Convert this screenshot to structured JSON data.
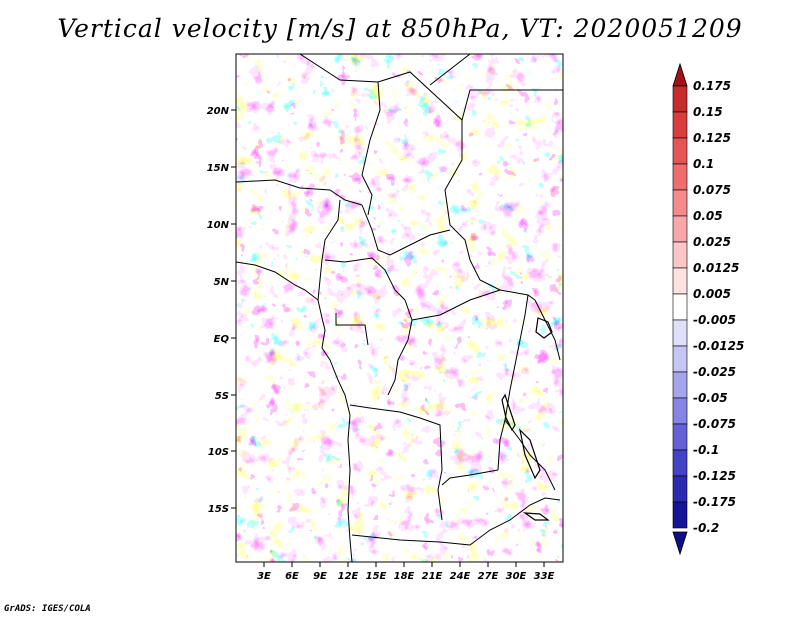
{
  "title": "Vertical velocity [m/s] at 850hPa, VT: 2020051209",
  "credit": "GrADS: IGES/COLA",
  "map": {
    "region": "Central Africa",
    "lat_range": [
      -19.5,
      25
    ],
    "lon_range": [
      0,
      35
    ],
    "lat_labels": [
      "20N",
      "15N",
      "10N",
      "5N",
      "EQ",
      "5S",
      "10S",
      "15S"
    ],
    "lat_values": [
      20,
      15,
      10,
      5,
      0,
      -5,
      -10,
      -15
    ],
    "lon_labels": [
      "3E",
      "6E",
      "9E",
      "12E",
      "15E",
      "18E",
      "21E",
      "24E",
      "27E",
      "30E",
      "33E"
    ],
    "lon_values": [
      3,
      6,
      9,
      12,
      15,
      18,
      21,
      24,
      27,
      30,
      33
    ]
  },
  "colorbar": {
    "labels": [
      "0.175",
      "0.15",
      "0.125",
      "0.1",
      "0.075",
      "0.05",
      "0.025",
      "0.0125",
      "0.005",
      "-0.005",
      "-0.0125",
      "-0.025",
      "-0.05",
      "-0.075",
      "-0.1",
      "-0.125",
      "-0.175",
      "-0.2"
    ],
    "colors": [
      "#a50f15",
      "#c62a2a",
      "#d93d3d",
      "#e65555",
      "#ee6e6e",
      "#f48a8a",
      "#f8a8a8",
      "#fbc6c6",
      "#fde2e2",
      "#ffffff",
      "#e0e0fb",
      "#c5c5f5",
      "#a5a5ee",
      "#8585e4",
      "#6363d8",
      "#4343c8",
      "#2a2ab0",
      "#151598"
    ],
    "top_color": "#a50f15",
    "bottom_color": "#110e8a"
  }
}
